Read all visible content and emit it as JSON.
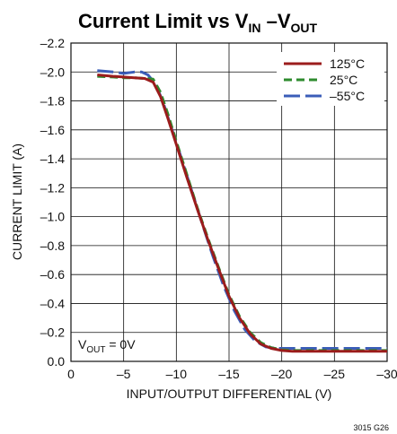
{
  "chart_data": {
    "type": "line",
    "title": "Current Limit vs VIN –VOUT",
    "title_parts": {
      "main": "Current Limit vs V",
      "sub1": "IN",
      "dash": " –V",
      "sub2": "OUT"
    },
    "xlabel": "INPUT/OUTPUT DIFFERENTIAL (V)",
    "ylabel": "CURRENT LIMIT (A)",
    "xlim": [
      0,
      -30
    ],
    "ylim": [
      0,
      -2.2
    ],
    "x_ticks": [
      0,
      -5,
      -10,
      -15,
      -20,
      -25,
      -30
    ],
    "x_tick_labels": [
      "0",
      "–5",
      "–10",
      "–15",
      "–20",
      "–25",
      "–30"
    ],
    "y_ticks": [
      0,
      -0.2,
      -0.4,
      -0.6,
      -0.8,
      -1.0,
      -1.2,
      -1.4,
      -1.6,
      -1.8,
      -2.0,
      -2.2
    ],
    "y_tick_labels": [
      "0.0",
      "–0.2",
      "–0.4",
      "–0.6",
      "–0.8",
      "–1.0",
      "–1.2",
      "–1.4",
      "–1.6",
      "–1.8",
      "–2.0",
      "–2.2"
    ],
    "grid": true,
    "legend_position": "top-right",
    "annotation": {
      "main": "V",
      "sub": "OUT",
      "rest": " = 0V"
    },
    "figure_id": "3015 G26",
    "series": [
      {
        "name": "125°C",
        "color": "#9b1c1c",
        "dash": "solid",
        "x": [
          -2.5,
          -4,
          -5,
          -6,
          -7,
          -7.8,
          -8.5,
          -9.2,
          -10,
          -11,
          -12,
          -13,
          -14,
          -15,
          -16,
          -17,
          -18,
          -19,
          -20,
          -21,
          -22,
          -25,
          -30
        ],
        "y": [
          -1.98,
          -1.97,
          -1.965,
          -1.96,
          -1.955,
          -1.93,
          -1.83,
          -1.68,
          -1.5,
          -1.27,
          -1.05,
          -0.84,
          -0.64,
          -0.45,
          -0.3,
          -0.19,
          -0.12,
          -0.09,
          -0.075,
          -0.07,
          -0.07,
          -0.07,
          -0.07
        ]
      },
      {
        "name": "25°C",
        "color": "#2e8b2e",
        "dash": "dashed-short",
        "x": [
          -2.5,
          -4,
          -5,
          -6,
          -7,
          -7.8,
          -8.5,
          -9.2,
          -10,
          -11,
          -12,
          -13,
          -14,
          -15,
          -16,
          -17,
          -18,
          -19,
          -20,
          -21,
          -22,
          -25,
          -30
        ],
        "y": [
          -1.97,
          -1.965,
          -1.96,
          -1.96,
          -1.955,
          -1.95,
          -1.86,
          -1.71,
          -1.52,
          -1.29,
          -1.06,
          -0.85,
          -0.65,
          -0.46,
          -0.31,
          -0.2,
          -0.13,
          -0.095,
          -0.08,
          -0.075,
          -0.075,
          -0.075,
          -0.075
        ]
      },
      {
        "name": "–55°C",
        "color": "#3b5db8",
        "dash": "dashed-long",
        "x": [
          -2.5,
          -4,
          -5,
          -6,
          -6.7,
          -7.3,
          -8,
          -8.7,
          -9.5,
          -10.5,
          -11.5,
          -12.5,
          -13.5,
          -14.5,
          -15.5,
          -16.5,
          -17.5,
          -18.5,
          -19.5,
          -20.5,
          -22,
          -25,
          -30
        ],
        "y": [
          -2.01,
          -2.0,
          -1.99,
          -2.0,
          -2.0,
          -1.98,
          -1.92,
          -1.8,
          -1.62,
          -1.4,
          -1.17,
          -0.94,
          -0.72,
          -0.52,
          -0.35,
          -0.22,
          -0.14,
          -0.1,
          -0.09,
          -0.09,
          -0.09,
          -0.09,
          -0.09
        ]
      }
    ]
  }
}
